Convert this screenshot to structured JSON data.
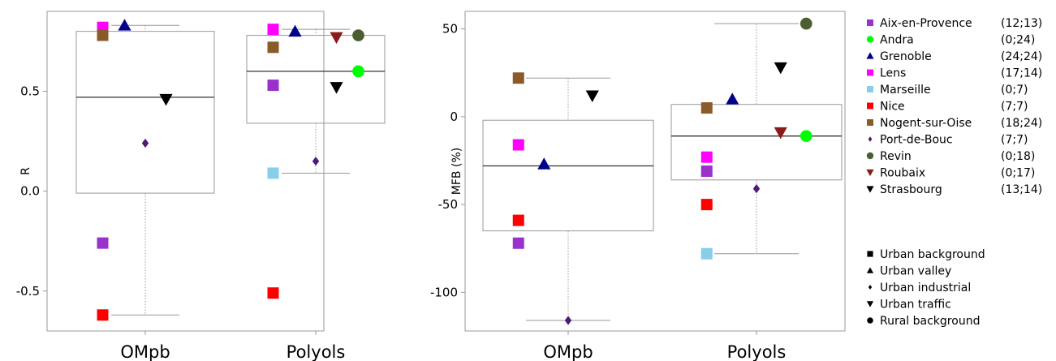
{
  "chart_data": [
    {
      "type": "box",
      "ylabel": "R",
      "ylim": [
        -0.7,
        0.9
      ],
      "yticks": [
        -0.5,
        0.0,
        0.5
      ],
      "ytick_labels": [
        "-0.5",
        "0.0",
        "0.5"
      ],
      "categories": [
        "OMpb",
        "Polyols"
      ],
      "boxes": [
        {
          "category": "OMpb",
          "q1": -0.01,
          "median": 0.47,
          "q3": 0.8,
          "whisker_low": -0.62,
          "whisker_high": 0.83
        },
        {
          "category": "Polyols",
          "q1": 0.34,
          "median": 0.6,
          "q3": 0.78,
          "whisker_low": 0.09,
          "whisker_high": 0.81
        }
      ],
      "points": [
        {
          "category": "OMpb",
          "site": "Lens",
          "value": 0.82,
          "offset": -0.35
        },
        {
          "category": "OMpb",
          "site": "Nogent-sur-Oise",
          "value": 0.78,
          "offset": -0.35
        },
        {
          "category": "OMpb",
          "site": "Grenoble",
          "value": 0.83,
          "offset": -0.17
        },
        {
          "category": "OMpb",
          "site": "Strasbourg",
          "value": 0.46,
          "offset": 0.17
        },
        {
          "category": "OMpb",
          "site": "Port-de-Bouc",
          "value": 0.24,
          "offset": 0.0
        },
        {
          "category": "OMpb",
          "site": "Aix-en-Provence",
          "value": -0.26,
          "offset": -0.35
        },
        {
          "category": "OMpb",
          "site": "Nice",
          "value": -0.62,
          "offset": -0.35
        },
        {
          "category": "Polyols",
          "site": "Lens",
          "value": 0.81,
          "offset": -0.35
        },
        {
          "category": "Polyols",
          "site": "Nogent-sur-Oise",
          "value": 0.72,
          "offset": -0.35
        },
        {
          "category": "Polyols",
          "site": "Aix-en-Provence",
          "value": 0.53,
          "offset": -0.35
        },
        {
          "category": "Polyols",
          "site": "Marseille",
          "value": 0.09,
          "offset": -0.35
        },
        {
          "category": "Polyols",
          "site": "Nice",
          "value": -0.51,
          "offset": -0.35
        },
        {
          "category": "Polyols",
          "site": "Grenoble",
          "value": 0.8,
          "offset": -0.17
        },
        {
          "category": "Polyols",
          "site": "Port-de-Bouc",
          "value": 0.15,
          "offset": 0.0
        },
        {
          "category": "Polyols",
          "site": "Roubaix",
          "value": 0.77,
          "offset": 0.17
        },
        {
          "category": "Polyols",
          "site": "Strasbourg",
          "value": 0.52,
          "offset": 0.17
        },
        {
          "category": "Polyols",
          "site": "Revin",
          "value": 0.78,
          "offset": 0.35
        },
        {
          "category": "Polyols",
          "site": "Andra",
          "value": 0.6,
          "offset": 0.35
        }
      ]
    },
    {
      "type": "box",
      "ylabel": "MFB (%)",
      "ylim": [
        -122,
        60
      ],
      "yticks": [
        -100,
        -50,
        0,
        50
      ],
      "ytick_labels": [
        "-100",
        "-50",
        "0",
        "50"
      ],
      "categories": [
        "OMpb",
        "Polyols"
      ],
      "boxes": [
        {
          "category": "OMpb",
          "q1": -65,
          "median": -28,
          "q3": -2,
          "whisker_low": -116,
          "whisker_high": 22
        },
        {
          "category": "Polyols",
          "q1": -36,
          "median": -11,
          "q3": 7,
          "whisker_low": -78,
          "whisker_high": 53
        }
      ],
      "points": [
        {
          "category": "OMpb",
          "site": "Nogent-sur-Oise",
          "value": 22,
          "offset": -0.35
        },
        {
          "category": "OMpb",
          "site": "Lens",
          "value": -16,
          "offset": -0.35
        },
        {
          "category": "OMpb",
          "site": "Nice",
          "value": -59,
          "offset": -0.35
        },
        {
          "category": "OMpb",
          "site": "Aix-en-Provence",
          "value": -72,
          "offset": -0.35
        },
        {
          "category": "OMpb",
          "site": "Grenoble",
          "value": -27,
          "offset": -0.17
        },
        {
          "category": "OMpb",
          "site": "Strasbourg",
          "value": 12,
          "offset": 0.17
        },
        {
          "category": "OMpb",
          "site": "Port-de-Bouc",
          "value": -116,
          "offset": 0.0
        },
        {
          "category": "Polyols",
          "site": "Nogent-sur-Oise",
          "value": 5,
          "offset": -0.35
        },
        {
          "category": "Polyols",
          "site": "Lens",
          "value": -23,
          "offset": -0.35
        },
        {
          "category": "Polyols",
          "site": "Aix-en-Provence",
          "value": -31,
          "offset": -0.35
        },
        {
          "category": "Polyols",
          "site": "Nice",
          "value": -50,
          "offset": -0.35
        },
        {
          "category": "Polyols",
          "site": "Marseille",
          "value": -78,
          "offset": -0.35
        },
        {
          "category": "Polyols",
          "site": "Grenoble",
          "value": 10,
          "offset": -0.17
        },
        {
          "category": "Polyols",
          "site": "Port-de-Bouc",
          "value": -41,
          "offset": 0.0
        },
        {
          "category": "Polyols",
          "site": "Strasbourg",
          "value": 28,
          "offset": 0.17
        },
        {
          "category": "Polyols",
          "site": "Roubaix",
          "value": -9,
          "offset": 0.17
        },
        {
          "category": "Polyols",
          "site": "Revin",
          "value": 53,
          "offset": 0.35
        },
        {
          "category": "Polyols",
          "site": "Andra",
          "value": -11,
          "offset": 0.35
        }
      ]
    }
  ],
  "legend": {
    "sites": [
      {
        "name": "Aix-en-Provence",
        "counts": "(12;13)",
        "color": "#9932CC",
        "marker": "square"
      },
      {
        "name": "Andra",
        "counts": "(0;24)",
        "color": "#00FF00",
        "marker": "circle"
      },
      {
        "name": "Grenoble",
        "counts": "(24;24)",
        "color": "#00008B",
        "marker": "triangle-up"
      },
      {
        "name": "Lens",
        "counts": "(17;14)",
        "color": "#FF00FF",
        "marker": "square"
      },
      {
        "name": "Marseille",
        "counts": "(0;7)",
        "color": "#87CEEB",
        "marker": "square"
      },
      {
        "name": "Nice",
        "counts": "(7;7)",
        "color": "#FF0000",
        "marker": "square"
      },
      {
        "name": "Nogent-sur-Oise",
        "counts": "(18;24)",
        "color": "#8B5A2B",
        "marker": "square"
      },
      {
        "name": "Port-de-Bouc",
        "counts": "(7;7)",
        "color": "#4B1A7A",
        "marker": "diamond"
      },
      {
        "name": "Revin",
        "counts": "(0;18)",
        "color": "#4A5E32",
        "marker": "circle"
      },
      {
        "name": "Roubaix",
        "counts": "(0;17)",
        "color": "#8B1A1A",
        "marker": "triangle-down"
      },
      {
        "name": "Strasbourg",
        "counts": "(13;14)",
        "color": "#000000",
        "marker": "triangle-down"
      }
    ],
    "types": [
      {
        "name": "Urban background",
        "marker": "square"
      },
      {
        "name": "Urban valley",
        "marker": "triangle-up"
      },
      {
        "name": "Urban industrial",
        "marker": "diamond"
      },
      {
        "name": "Urban traffic",
        "marker": "triangle-down"
      },
      {
        "name": "Rural background",
        "marker": "circle"
      }
    ]
  }
}
